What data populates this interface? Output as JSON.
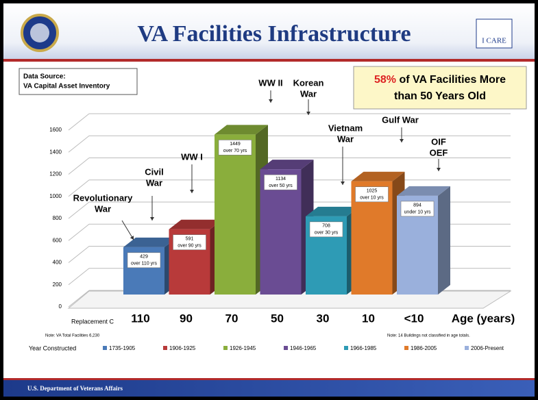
{
  "header": {
    "title": "VA Facilities Infrastructure",
    "logo": "I CARE"
  },
  "footer": "U.S. Department of Veterans Affairs",
  "chart_data": {
    "type": "bar3d",
    "source": [
      "Data Source:",
      "VA Capital Asset Inventory"
    ],
    "callout": {
      "highlight": "58%",
      "line1": "of VA Facilities More",
      "line2": "than 50 Years Old"
    },
    "categories": [
      "1735-1905",
      "1906-1925",
      "1926-1945",
      "1946-1965",
      "1966-1985",
      "1986-2005",
      "2006-Present"
    ],
    "values": [
      429,
      591,
      1449,
      1134,
      708,
      1025,
      894
    ],
    "bar_notes": [
      "over 110 yrs",
      "over 90 yrs",
      "over 70 yrs",
      "over 50 yrs",
      "over 30 yrs",
      "over 10 yrs",
      "under 10 yrs"
    ],
    "colors": [
      "#4a7ab8",
      "#b83a3a",
      "#8aae3c",
      "#6a4c93",
      "#2e9bb5",
      "#e07a2a",
      "#9ab0dc"
    ],
    "ages": [
      "110",
      "90",
      "70",
      "50",
      "30",
      "10",
      "<10"
    ],
    "age_label": "Age (years)",
    "row_label": "Replacement C",
    "annotations": [
      [
        "Revolutionary",
        "War"
      ],
      [
        "Civil",
        "War"
      ],
      [
        "WW I"
      ],
      [
        "WW II"
      ],
      [
        "Korean",
        "War"
      ],
      [
        "Vietnam",
        "War"
      ],
      [
        "Gulf War"
      ],
      [
        "OIF",
        "OEF"
      ]
    ],
    "notes": [
      "Note: VA Total Facilities 6,230",
      "Note: 14 Buildings not classified in age totals."
    ],
    "legend_title": "Year Constructed",
    "ylim": [
      0,
      1600
    ],
    "yticks": [
      0,
      200,
      400,
      600,
      800,
      1000,
      1200,
      1400,
      1600
    ],
    "grid": true
  }
}
